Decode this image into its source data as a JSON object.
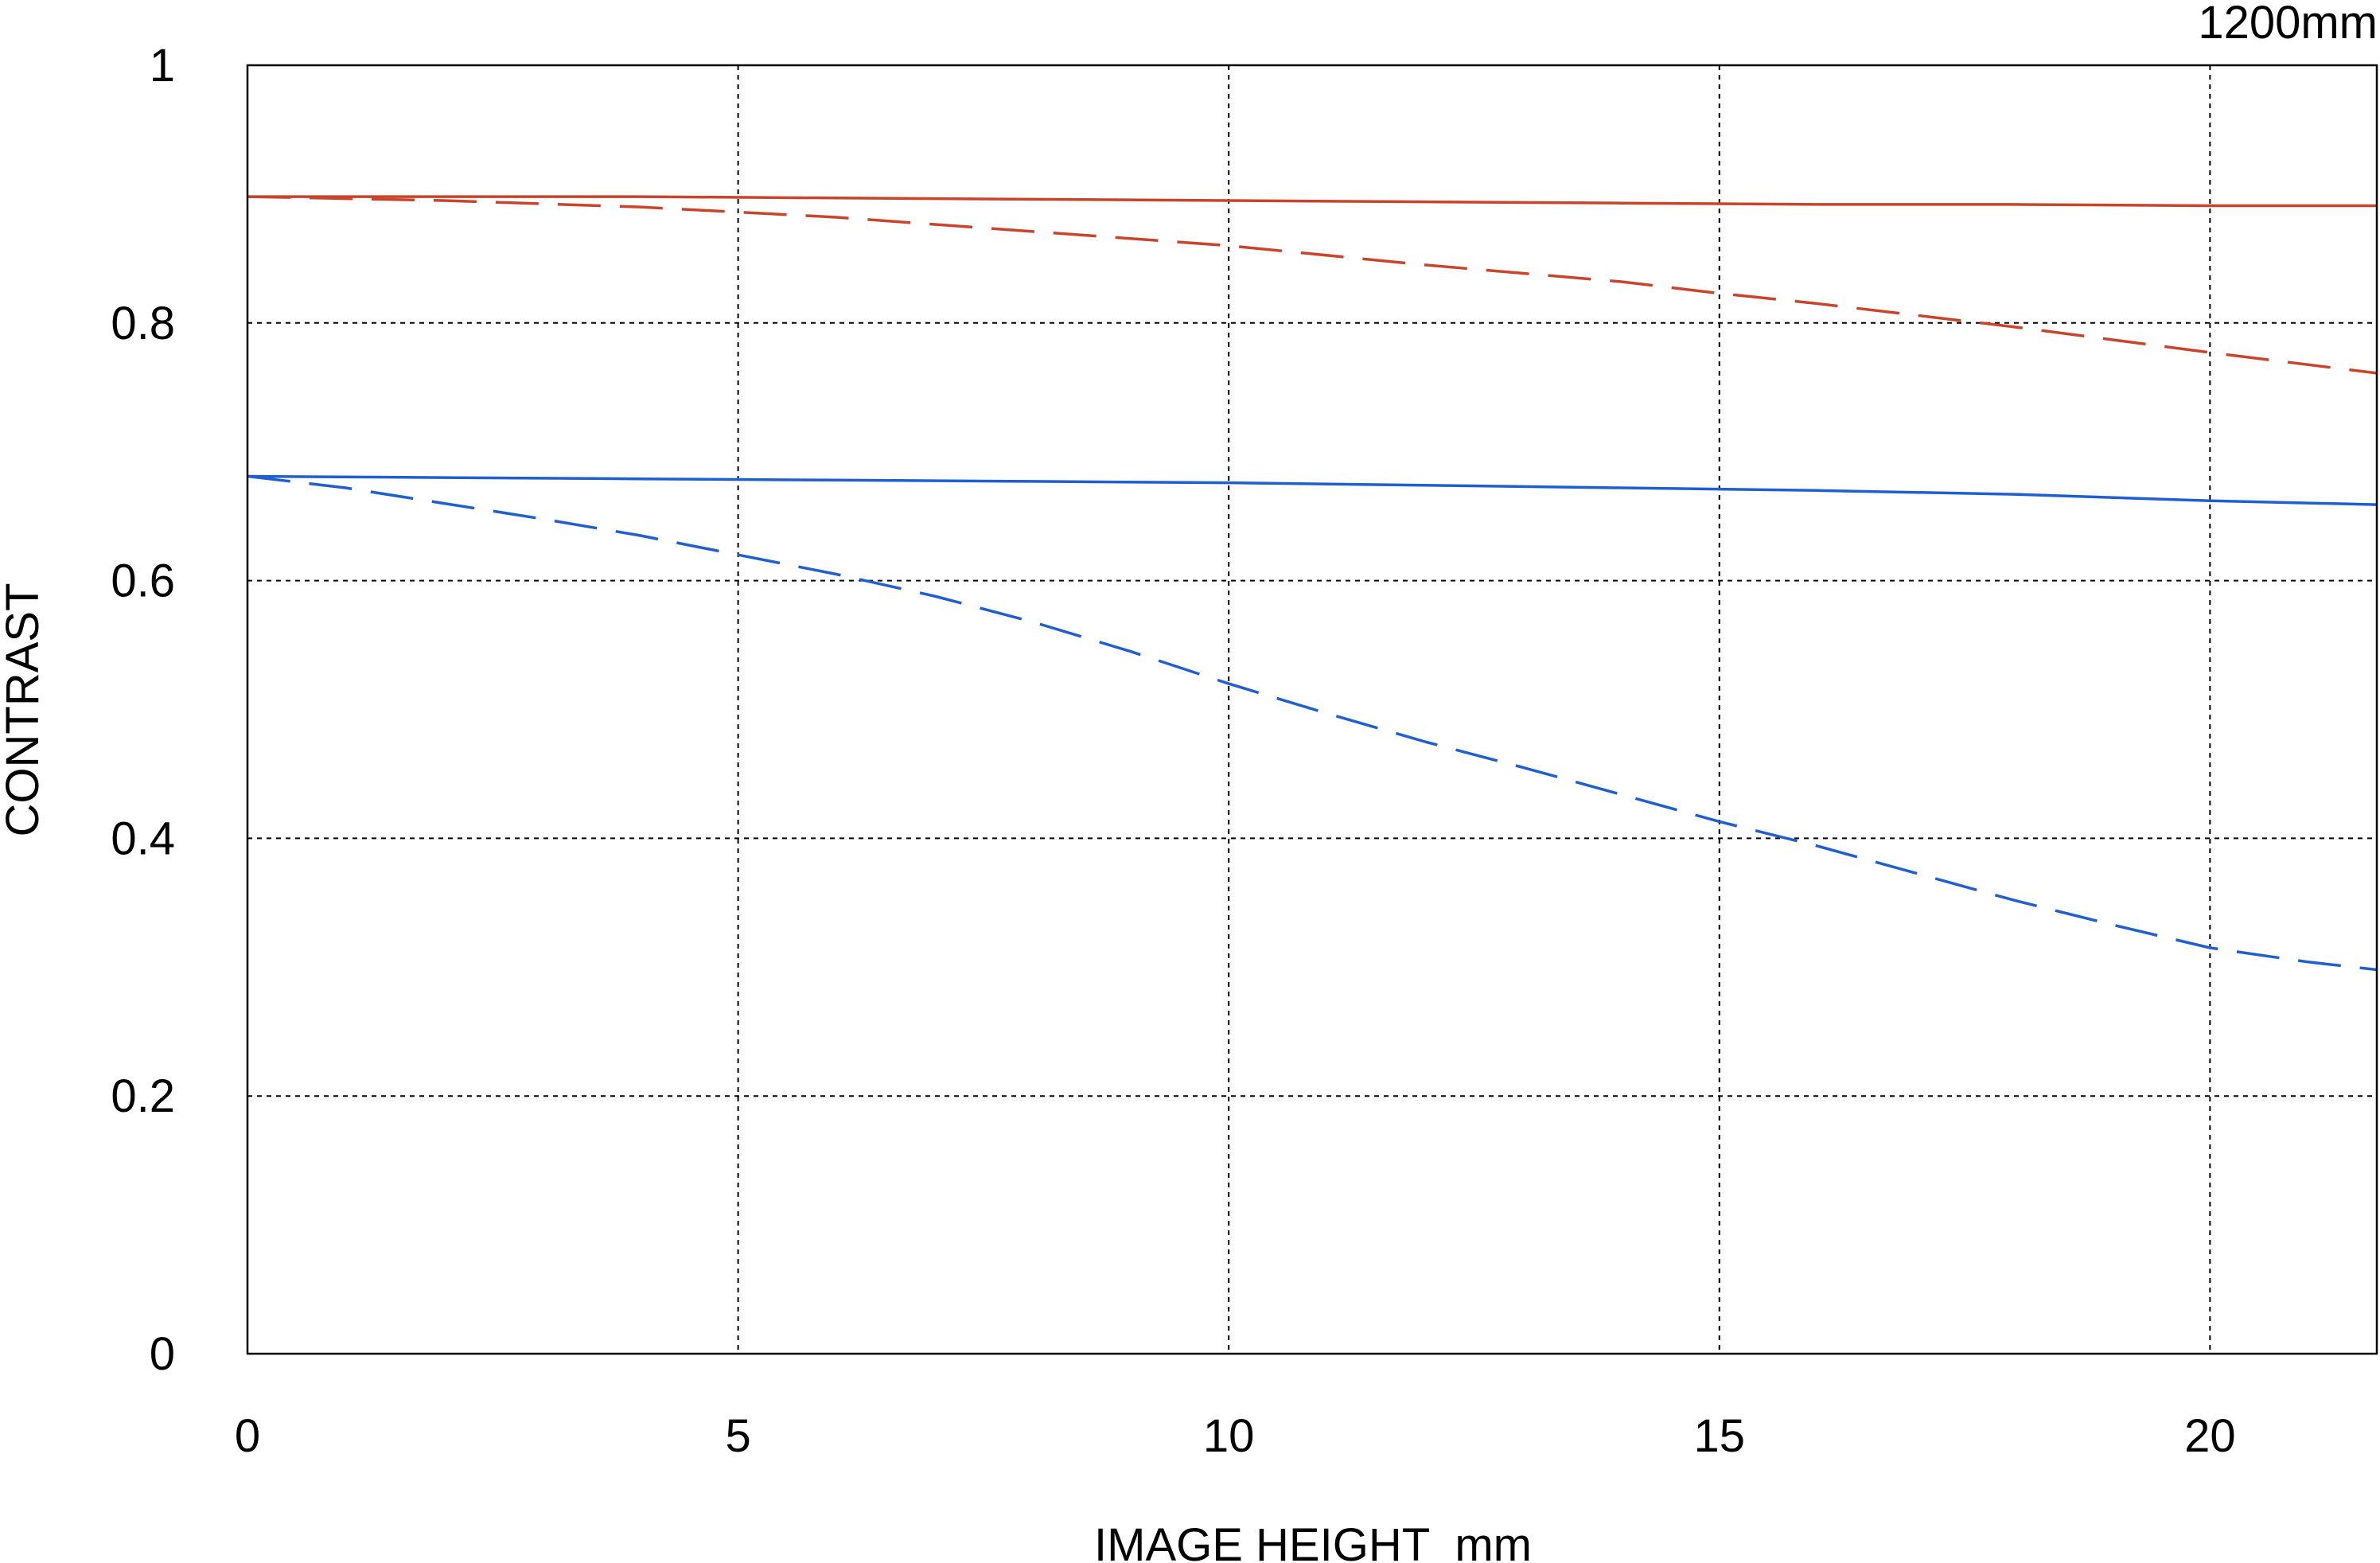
{
  "chart_data": {
    "type": "line",
    "corner_label": "1200mm",
    "xlabel": "IMAGE HEIGHT  mm",
    "ylabel": "CONTRAST",
    "xlim": [
      0,
      21.7
    ],
    "ylim": [
      0,
      1
    ],
    "x_ticks": [
      0,
      5,
      10,
      15,
      20
    ],
    "y_ticks": [
      0,
      0.2,
      0.4,
      0.6,
      0.8,
      1
    ],
    "x_tick_labels": [
      "0",
      "5",
      "10",
      "15",
      "20"
    ],
    "y_tick_labels": [
      "0",
      "0.2",
      "0.4",
      "0.6",
      "0.8",
      "1"
    ],
    "grid": true,
    "series": [
      {
        "color": "#c8452c",
        "style": "solid",
        "x": [
          0,
          2,
          4,
          6,
          8,
          10,
          12,
          14,
          16,
          18,
          20,
          21.7
        ],
        "y": [
          0.898,
          0.898,
          0.898,
          0.897,
          0.896,
          0.895,
          0.894,
          0.893,
          0.892,
          0.892,
          0.891,
          0.891
        ]
      },
      {
        "color": "#c8452c",
        "style": "dashed",
        "x": [
          0,
          2,
          4,
          6,
          8,
          10,
          12,
          14,
          15,
          16,
          18,
          20,
          21.7
        ],
        "y": [
          0.898,
          0.895,
          0.89,
          0.882,
          0.871,
          0.86,
          0.845,
          0.832,
          0.823,
          0.815,
          0.797,
          0.777,
          0.761
        ]
      },
      {
        "color": "#1f5fcf",
        "style": "solid",
        "x": [
          0,
          2,
          4,
          6,
          8,
          10,
          12,
          14,
          16,
          18,
          20,
          21.7
        ],
        "y": [
          0.681,
          0.68,
          0.679,
          0.678,
          0.677,
          0.676,
          0.674,
          0.672,
          0.67,
          0.667,
          0.662,
          0.659
        ]
      },
      {
        "color": "#1f5fcf",
        "style": "dashed",
        "x": [
          0,
          1,
          2,
          3,
          4,
          5,
          6,
          7,
          8,
          9,
          10,
          11,
          12,
          13,
          14,
          15,
          16,
          17,
          18,
          19,
          20,
          21,
          21.7
        ],
        "y": [
          0.681,
          0.672,
          0.66,
          0.648,
          0.635,
          0.62,
          0.605,
          0.588,
          0.568,
          0.545,
          0.52,
          0.497,
          0.475,
          0.455,
          0.434,
          0.413,
          0.394,
          0.373,
          0.352,
          0.333,
          0.315,
          0.304,
          0.298
        ]
      }
    ]
  }
}
